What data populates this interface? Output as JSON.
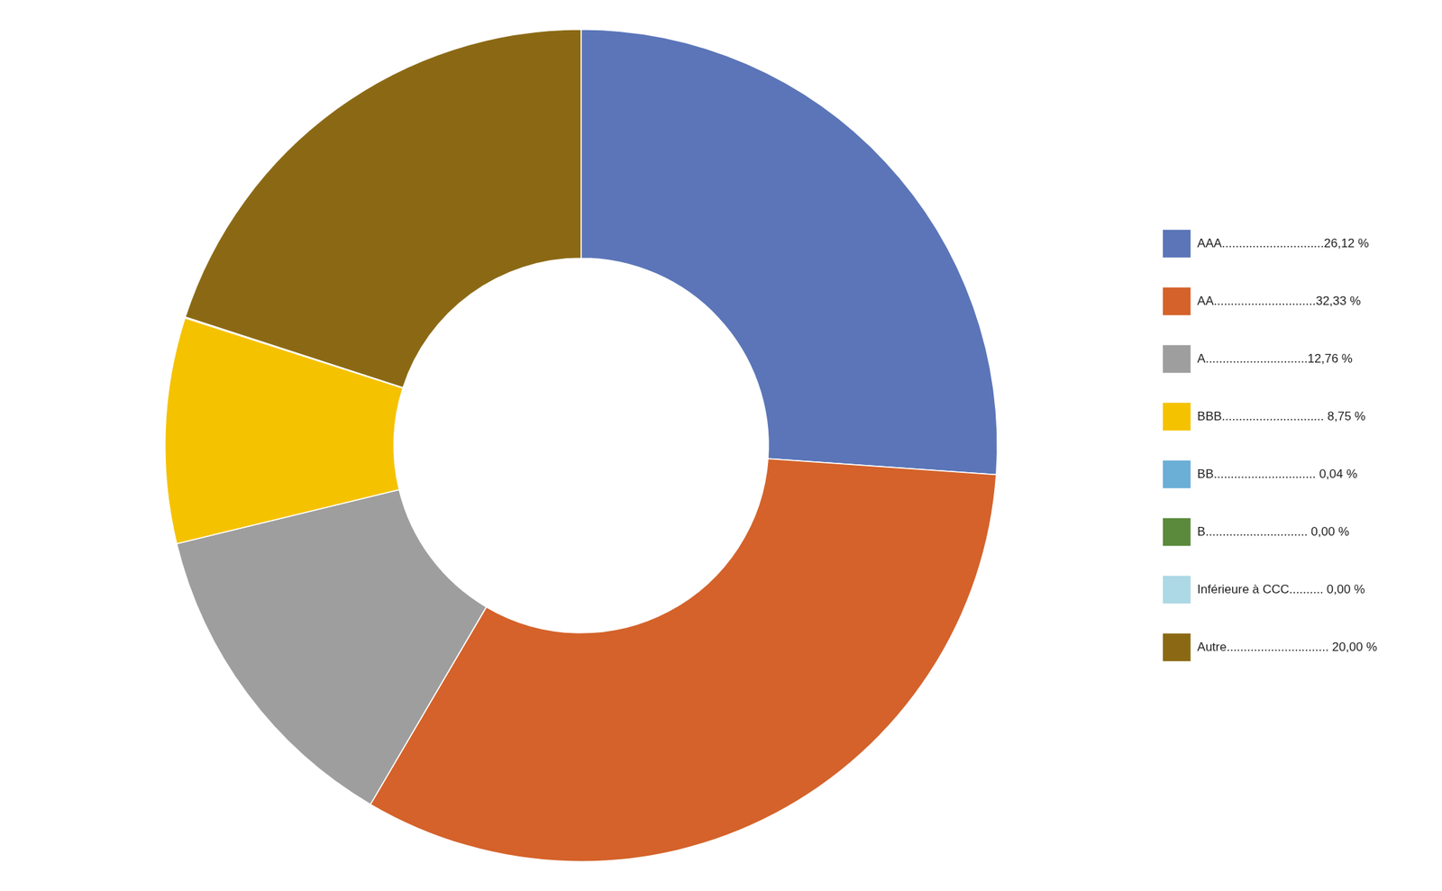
{
  "chart_data": {
    "type": "doughnut",
    "categories": [
      "AAA..............................26,12 %",
      "AA..............................32,33 %",
      "A..............................12,76 %",
      "BBB.............................. 8,75 %",
      "BB.............................. 0,04 %",
      "B.............................. 0,00 %",
      "Inférieure à CCC.......... 0,00 %",
      "Autre.............................. 20,00 %"
    ],
    "values": [
      26.12,
      32.33,
      12.76,
      8.75,
      0.04,
      0.0,
      0.0,
      20.0
    ],
    "colors": [
      "#5B75B8",
      "#D4622A",
      "#9E9E9E",
      "#F5C200",
      "#6BAED6",
      "#5B8A3C",
      "#ADD8E6",
      "#8B6914"
    ],
    "legend": "right"
  }
}
